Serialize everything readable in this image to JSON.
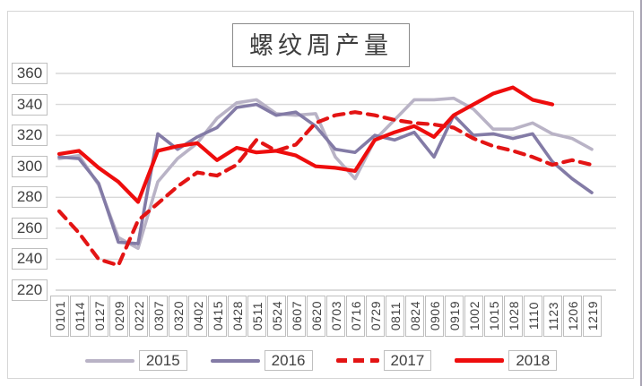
{
  "chart_data": {
    "type": "line",
    "title": "螺纹周产量",
    "categories": [
      "0101",
      "0114",
      "0127",
      "0209",
      "0222",
      "0307",
      "0320",
      "0402",
      "0415",
      "0428",
      "0511",
      "0524",
      "0607",
      "0620",
      "0703",
      "0716",
      "0729",
      "0811",
      "0824",
      "0906",
      "0919",
      "1002",
      "1015",
      "1028",
      "1110",
      "1123",
      "1206",
      "1219"
    ],
    "ylim": [
      220,
      360
    ],
    "ytick_step": 20,
    "yticks": [
      360,
      340,
      320,
      300,
      280,
      260,
      240,
      220
    ],
    "grid": true,
    "legend_position": "bottom",
    "series": [
      {
        "name": "2015",
        "color": "#b9b3c6",
        "dash": false,
        "width": 3.6,
        "values": [
          305,
          307,
          288,
          254,
          247,
          290,
          305,
          315,
          331,
          341,
          343,
          334,
          333,
          334,
          306,
          292,
          317,
          330,
          343,
          343,
          344,
          337,
          324,
          324,
          328,
          321,
          318,
          311
        ]
      },
      {
        "name": "2016",
        "color": "#837ba6",
        "dash": false,
        "width": 3.6,
        "values": [
          306,
          305,
          289,
          251,
          250,
          321,
          311,
          319,
          325,
          338,
          340,
          333,
          335,
          326,
          311,
          309,
          320,
          317,
          322,
          306,
          333,
          320,
          321,
          318,
          321,
          303,
          292,
          283
        ]
      },
      {
        "name": "2017",
        "color": "#e31414",
        "dash": true,
        "width": 4.2,
        "values": [
          271,
          257,
          240,
          236,
          265,
          276,
          287,
          296,
          294,
          301,
          317,
          310,
          314,
          328,
          333,
          335,
          333,
          330,
          328,
          327,
          325,
          318,
          313,
          310,
          306,
          301,
          304,
          301
        ]
      },
      {
        "name": "2018",
        "color": "#ee0d0d",
        "dash": false,
        "width": 4.2,
        "values": [
          308,
          310,
          299,
          290,
          277,
          310,
          313,
          315,
          304,
          312,
          309,
          310,
          307,
          300,
          299,
          297,
          317,
          322,
          326,
          319,
          333,
          340,
          347,
          351,
          343,
          340
        ]
      }
    ]
  },
  "styles": {
    "gridline_color": "#d9d9d9",
    "axis_line_color": "#cfcfcf",
    "frame_color": "#d6d6d6",
    "label_text_color": "#404040",
    "box_border_color": "#bfbfbf",
    "title_border_color": "#8c8c8c"
  }
}
